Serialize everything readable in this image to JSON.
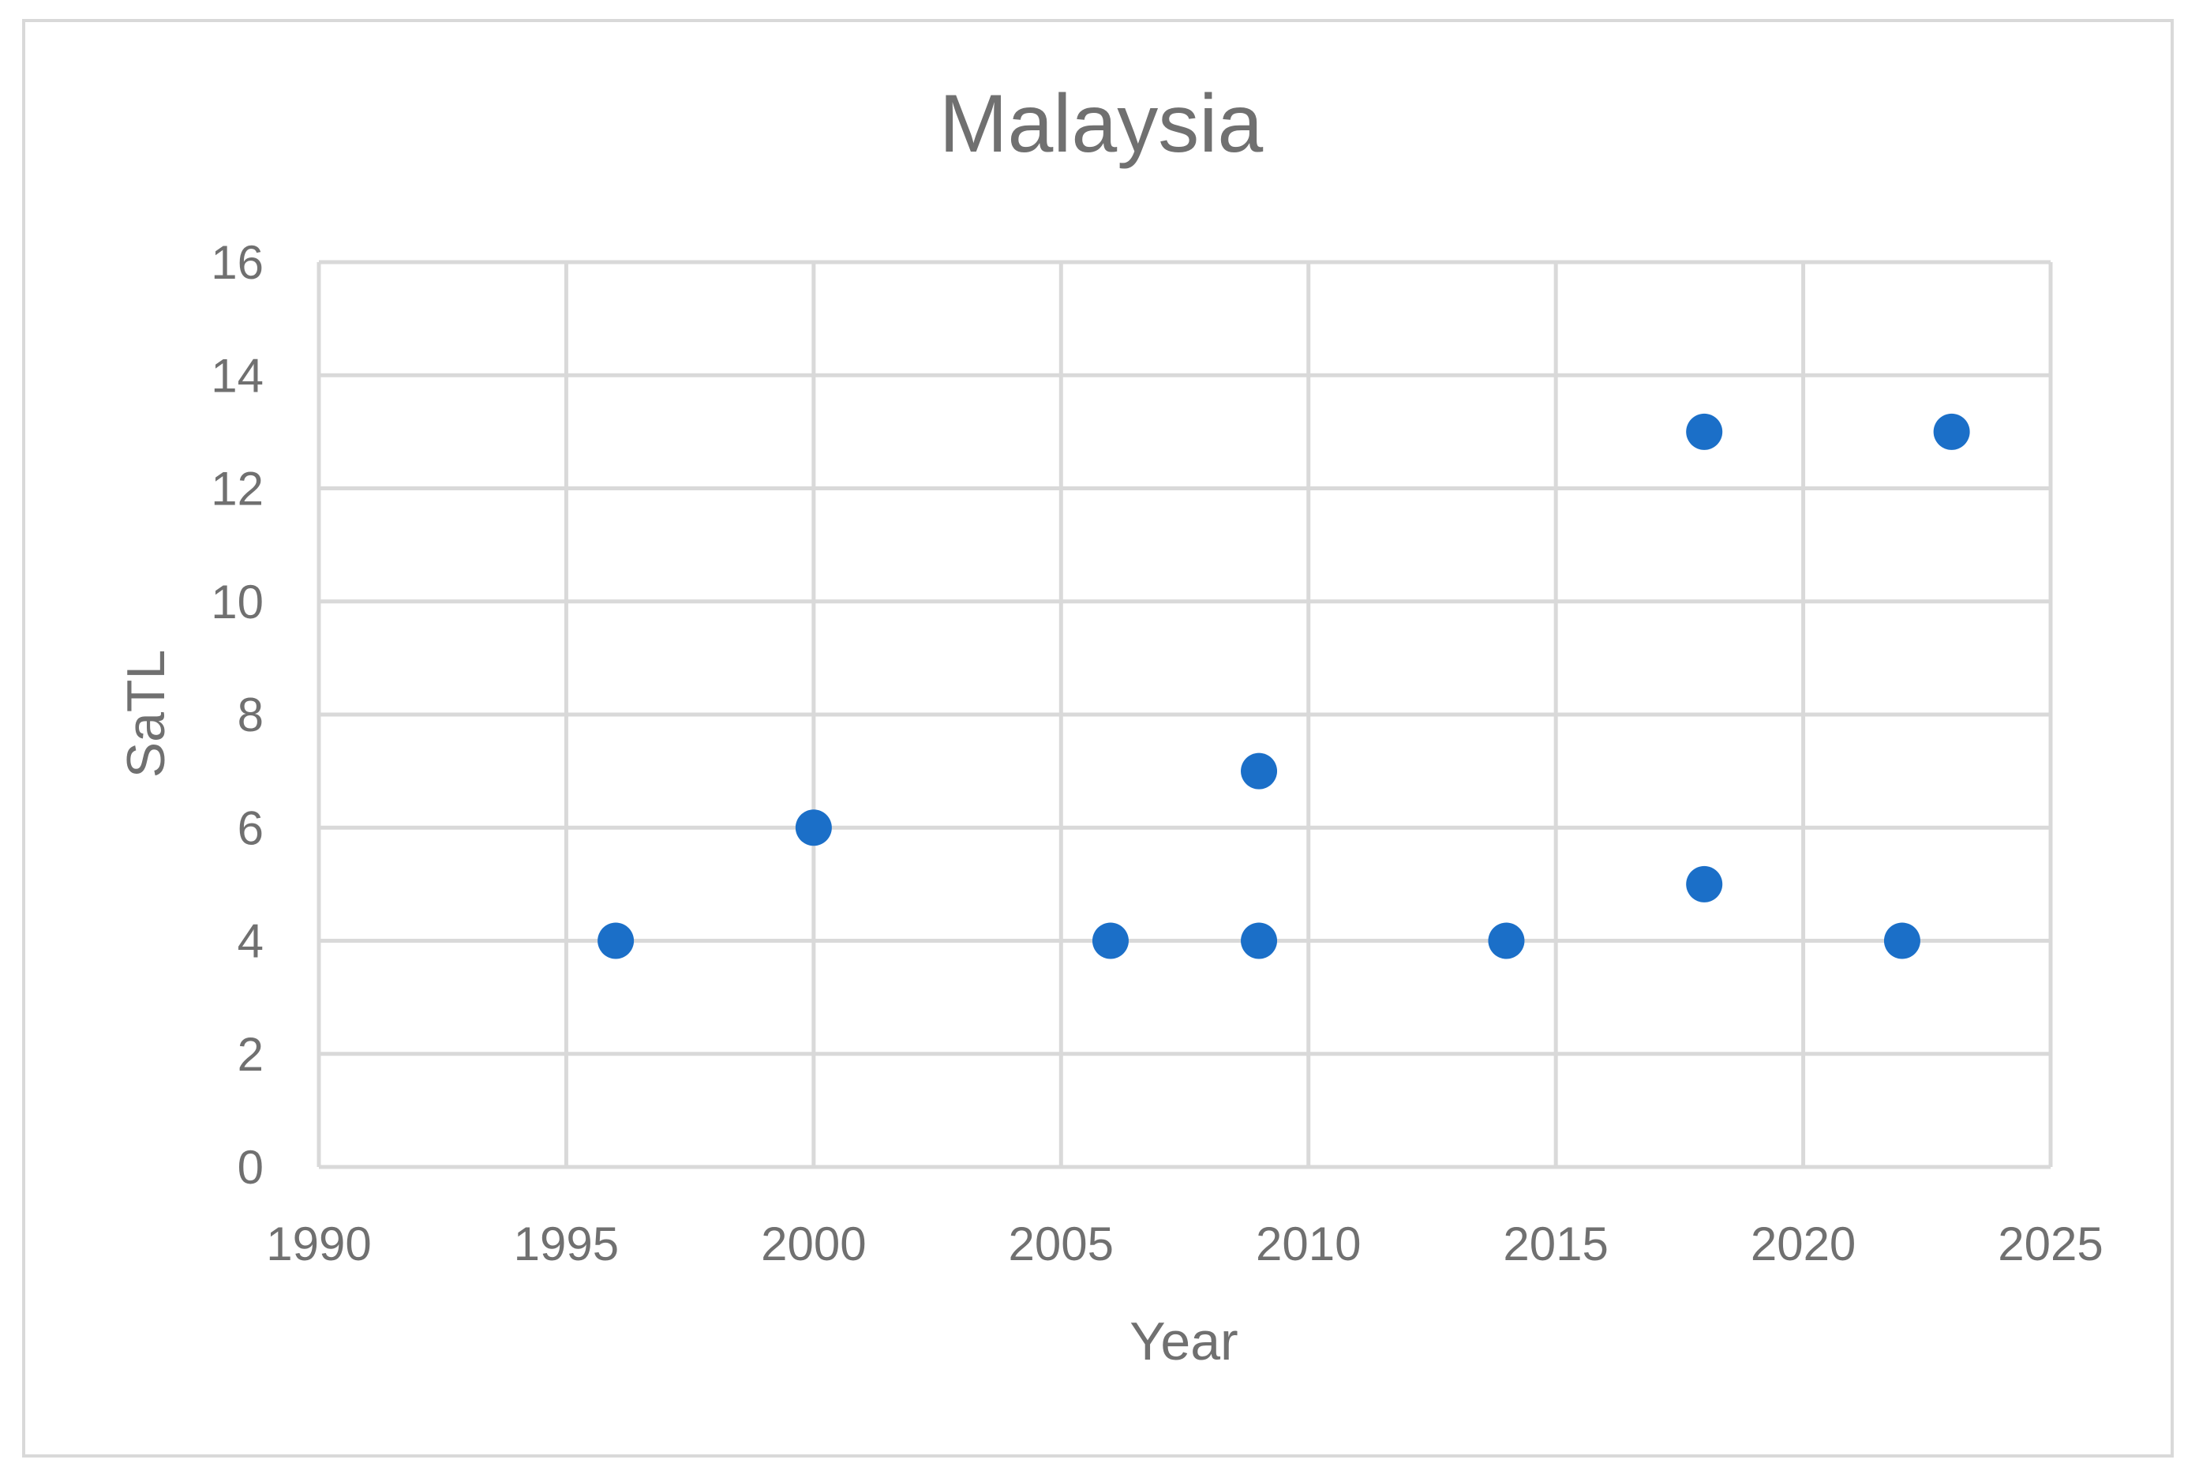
{
  "chart_data": {
    "type": "scatter",
    "title": "Malaysia",
    "xlabel": "Year",
    "ylabel": "SaTL",
    "xlim": [
      1990,
      2025
    ],
    "ylim": [
      0,
      16
    ],
    "x_ticks": [
      1990,
      1995,
      2000,
      2005,
      2010,
      2015,
      2020,
      2025
    ],
    "y_ticks": [
      0,
      2,
      4,
      6,
      8,
      10,
      12,
      14,
      16
    ],
    "grid": true,
    "legend": "none",
    "series": [
      {
        "color": "#1b6fc8",
        "points": [
          {
            "x": 1996,
            "y": 4
          },
          {
            "x": 2000,
            "y": 6
          },
          {
            "x": 2006,
            "y": 4
          },
          {
            "x": 2009,
            "y": 7
          },
          {
            "x": 2009,
            "y": 4
          },
          {
            "x": 2014,
            "y": 4
          },
          {
            "x": 2018,
            "y": 13
          },
          {
            "x": 2018,
            "y": 5
          },
          {
            "x": 2022,
            "y": 4
          },
          {
            "x": 2023,
            "y": 13
          }
        ]
      }
    ]
  }
}
